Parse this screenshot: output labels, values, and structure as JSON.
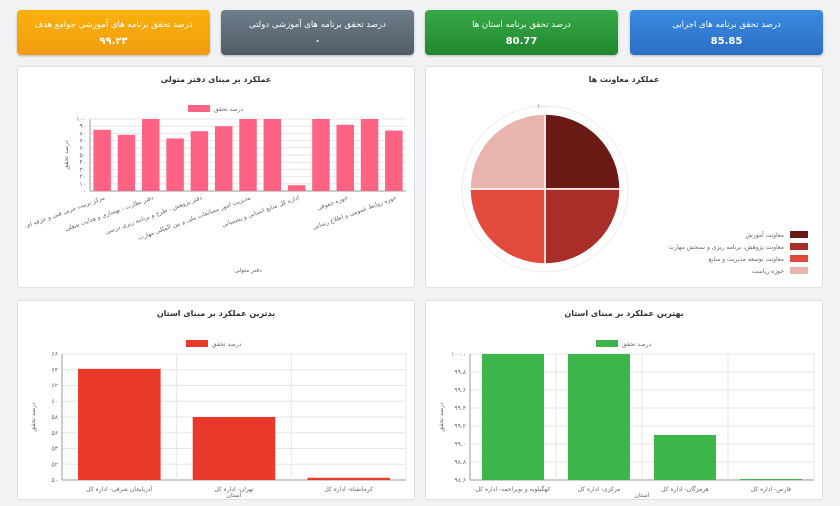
{
  "kpis": {
    "executive": {
      "title": "درصد تحقق برنامه های اجرایی",
      "value": "85.85"
    },
    "province": {
      "title": "درصد تحقق برنامه استان ها",
      "value": "80.77"
    },
    "government": {
      "title": "درصد تحقق برنامه های آموزشی دولتی",
      "value": "۰"
    },
    "community": {
      "title": "درصد تحقق برنامه های آموزشی جوامع هدف",
      "value": "۹۹.۲۳"
    }
  },
  "colors": {
    "pink": "#ff6384",
    "red": "#e8392b",
    "green": "#3cb54a",
    "blue": "#3a8be0",
    "orange": "#f9b10a",
    "slate": "#5f6e7a"
  },
  "chart_data": [
    {
      "id": "office",
      "type": "bar",
      "title": "عملکرد بر مبنای دفتر متولی",
      "xlabel": "دفتر متولی",
      "ylabel": "درصد تحقق",
      "legend": "درصد تحقق",
      "ylim": [
        0,
        100
      ],
      "yticks": [
        "۰",
        "۱۰",
        "۲۰",
        "۳۰",
        "۴۰",
        "۵۰",
        "۶۰",
        "۷۰",
        "۸۰",
        "۹۰",
        "۱۰۰"
      ],
      "categories": [
        "مرکز تربیت مربی فنی و حرفه ای",
        "",
        "دفتر نظارت ، بهسازی و هدایت شغلی",
        "",
        "دفتر پژوهش ، طرح و برنامه ریزی درسی",
        "",
        "مدیریت امور مسابقات ملی و بین المللی مهارت",
        "",
        "اداره کل منابع انسانی و پشتیبانی",
        "",
        "حوزه حقوقی",
        "",
        "حوزه روابط عمومی و اطلاع رسانی"
      ],
      "values": [
        85,
        78,
        100,
        73,
        83,
        90,
        100,
        100,
        8,
        100,
        92,
        100,
        84
      ]
    },
    {
      "id": "deputy",
      "type": "pie",
      "title": "عملکرد معاونت ها",
      "scale_label": "۱۰۰",
      "labels": [
        "معاونت آموزش",
        "معاونت پژوهش، برنامه ریزی و سنجش مهارت",
        "معاونت توسعه مدیریت و منابع",
        "حوزه ریاست"
      ],
      "values": [
        25,
        25,
        25,
        25
      ],
      "colors": [
        "#6b1a16",
        "#a82e27",
        "#e24a3b",
        "#e8b4ad"
      ]
    },
    {
      "id": "worst",
      "type": "bar",
      "title": "بدترین عملکرد بر مبنای استان",
      "xlabel": "استان",
      "ylabel": "درصد تحقق",
      "legend": "درصد تحقق",
      "ylim": [
        50,
        67
      ],
      "yticks": [
        "۵۰",
        "۵۲",
        "۵۴",
        "۵۶",
        "۵۸",
        "۶۰",
        "۶۲",
        "۶۴",
        "۶۶"
      ],
      "categories": [
        "آذربایجان شرقی- اداره کل",
        "تهران- اداره کل",
        "کرمانشاه- اداره کل"
      ],
      "values": [
        65,
        58.5,
        50.3
      ]
    },
    {
      "id": "best",
      "type": "bar",
      "title": "بهترین عملکرد بر مبنای استان",
      "xlabel": "استان",
      "ylabel": "درصد تحقق",
      "legend": "درصد تحقق",
      "ylim": [
        98.6,
        100
      ],
      "yticks": [
        "۹۸.۶",
        "۹۸.۸",
        "۹۹.۰",
        "۹۹.۲",
        "۹۹.۴",
        "۹۹.۶",
        "۹۹.۸",
        "۱۰۰.۰"
      ],
      "categories": [
        "کهگیلویه و بویراحمد- اداره کل",
        "مرکزی- اداره کل",
        "هرمزگان- اداره کل",
        "فارس- اداره کل"
      ],
      "values": [
        100,
        100,
        99.1,
        98.6
      ]
    }
  ]
}
